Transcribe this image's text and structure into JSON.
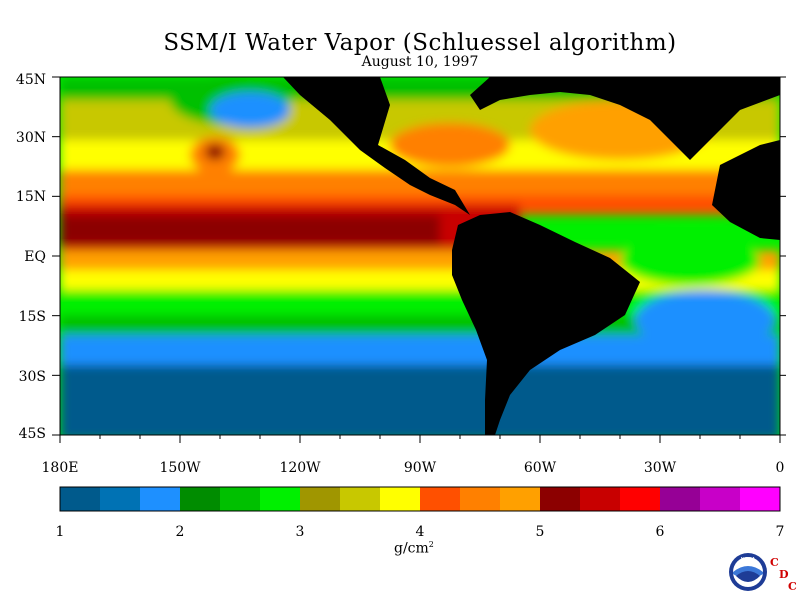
{
  "title": "SSM/I Water Vapor (Schluessel algorithm)",
  "subtitle": "August 10, 1997",
  "lat_labels": [
    "45N",
    "30N",
    "15N",
    "EQ",
    "15S",
    "30S",
    "45S"
  ],
  "lon_labels": [
    "180E",
    "150W",
    "120W",
    "90W",
    "60W",
    "30W",
    "0"
  ],
  "colorbar": {
    "labels": [
      "1",
      "2",
      "3",
      "4",
      "5",
      "6",
      "7"
    ],
    "unit": "g/cm",
    "unit_exp": "2",
    "colors": [
      "#005a8c",
      "#0072b4",
      "#1e90ff",
      "#008c00",
      "#00c000",
      "#00f000",
      "#a09600",
      "#c8c800",
      "#ffff00",
      "#ff5000",
      "#ff8000",
      "#ffa000",
      "#8c0000",
      "#c80000",
      "#ff0000",
      "#960096",
      "#c800c8",
      "#ff00ff"
    ]
  },
  "logo": {
    "text": "NOAA",
    "c": "C",
    "d": "D",
    "c2": "C"
  },
  "icons": {
    "noaa": "noaa-logo-icon"
  }
}
